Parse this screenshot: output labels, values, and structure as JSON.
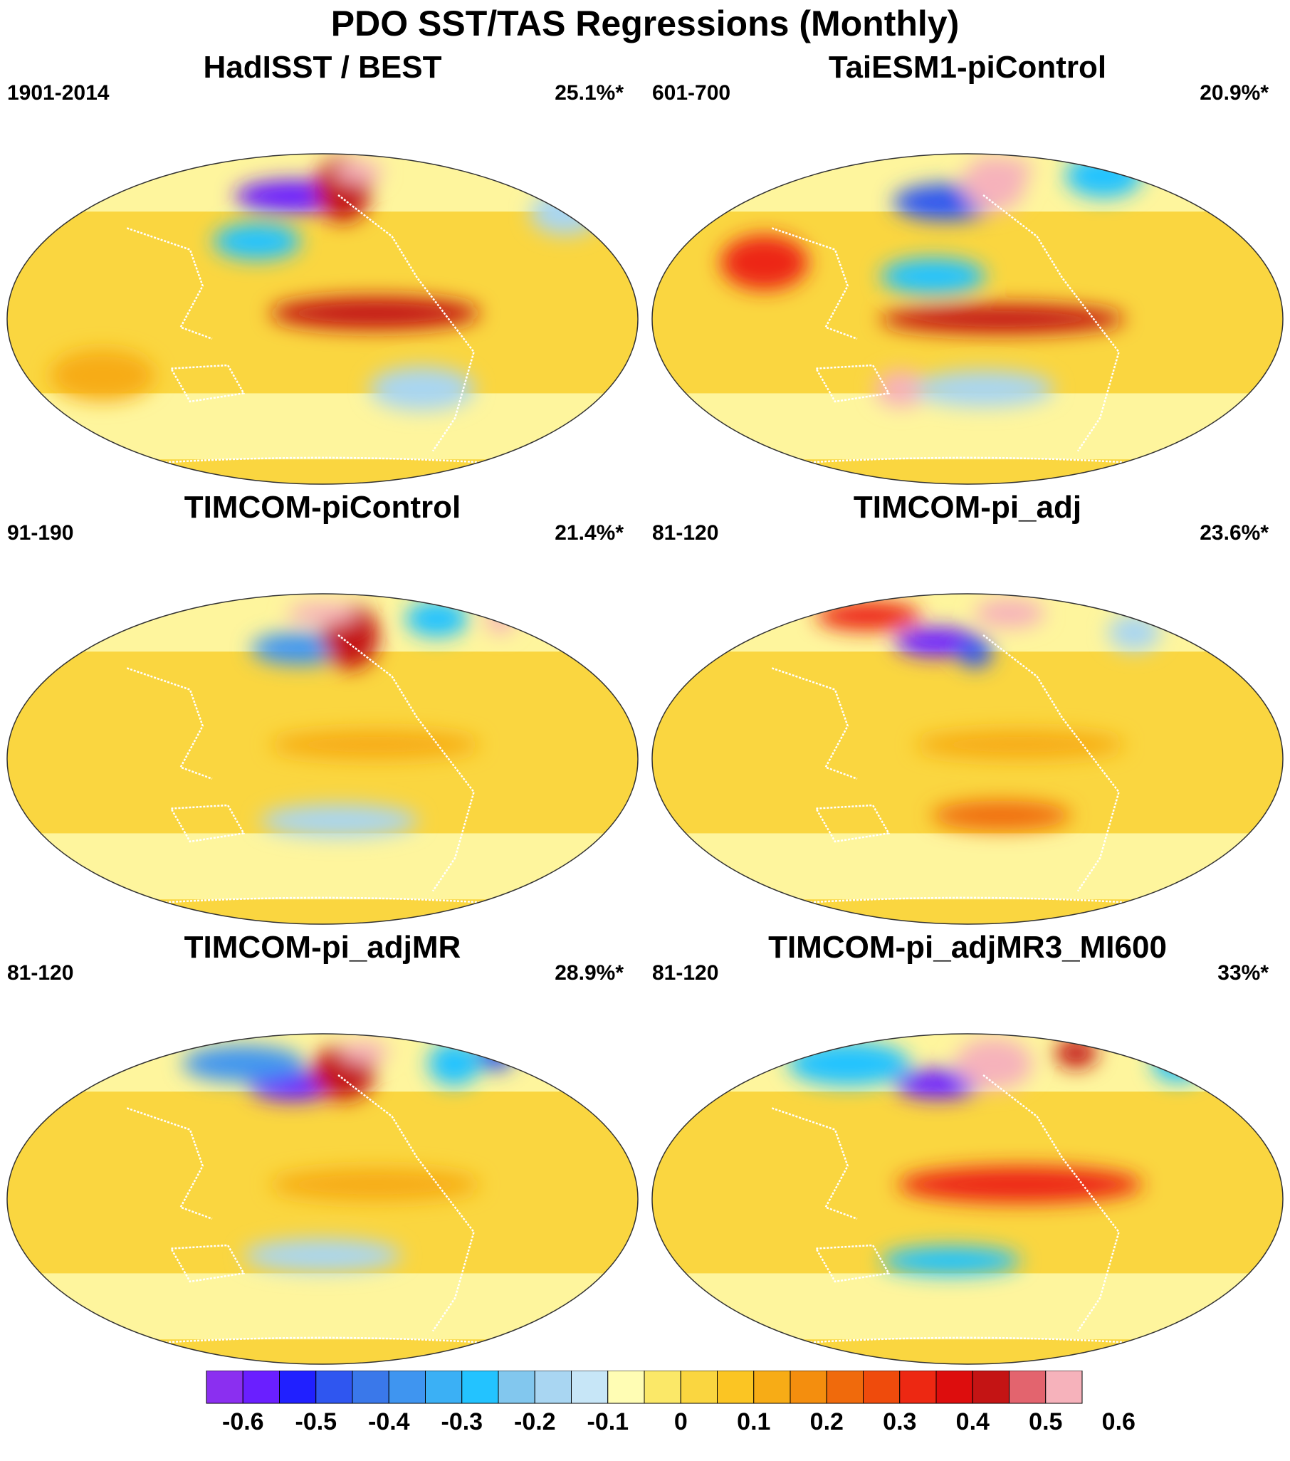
{
  "title": "PDO SST/TAS Regressions (Monthly)",
  "panels": [
    {
      "title": "HadISST / BEST",
      "period": "1901-2014",
      "variance": "25.1%*",
      "blobs": [
        {
          "lon": 160,
          "lat": 48,
          "rx": 34,
          "ry": 9,
          "v": -0.6
        },
        {
          "lon": 195,
          "lat": 52,
          "rx": 16,
          "ry": 18,
          "v": 0.4
        },
        {
          "lon": 210,
          "lat": 63,
          "rx": 14,
          "ry": 6,
          "v": 0.7
        },
        {
          "lon": 210,
          "lat": 2,
          "rx": 60,
          "ry": 9,
          "v": 0.4
        },
        {
          "lon": 140,
          "lat": 28,
          "rx": 25,
          "ry": 10,
          "v": -0.3
        },
        {
          "lon": 240,
          "lat": -25,
          "rx": 30,
          "ry": 12,
          "v": -0.2
        },
        {
          "lon": 50,
          "lat": -20,
          "rx": 30,
          "ry": 14,
          "v": 0.1
        },
        {
          "lon": 340,
          "lat": 40,
          "rx": 20,
          "ry": 12,
          "v": -0.2
        }
      ]
    },
    {
      "title": "TaiESM1-piControl",
      "period": "601-700",
      "variance": "20.9%*",
      "blobs": [
        {
          "lon": 165,
          "lat": 45,
          "rx": 30,
          "ry": 10,
          "v": -0.5
        },
        {
          "lon": 200,
          "lat": 55,
          "rx": 18,
          "ry": 15,
          "v": 0.5
        },
        {
          "lon": 215,
          "lat": 65,
          "rx": 14,
          "ry": 6,
          "v": 0.7
        },
        {
          "lon": 200,
          "lat": 0,
          "rx": 70,
          "ry": 8,
          "v": 0.4
        },
        {
          "lon": 140,
          "lat": -25,
          "rx": 15,
          "ry": 10,
          "v": 0.5
        },
        {
          "lon": 160,
          "lat": 15,
          "rx": 30,
          "ry": 10,
          "v": -0.3
        },
        {
          "lon": 190,
          "lat": -25,
          "rx": 40,
          "ry": 10,
          "v": -0.2
        },
        {
          "lon": 290,
          "lat": 60,
          "rx": 22,
          "ry": 12,
          "v": -0.3
        },
        {
          "lon": 60,
          "lat": 20,
          "rx": 25,
          "ry": 15,
          "v": 0.3
        }
      ]
    },
    {
      "title": "TIMCOM-piControl",
      "period": "91-190",
      "variance": "21.4%*",
      "blobs": [
        {
          "lon": 165,
          "lat": 42,
          "rx": 28,
          "ry": 9,
          "v": -0.4
        },
        {
          "lon": 200,
          "lat": 48,
          "rx": 16,
          "ry": 18,
          "v": 0.4
        },
        {
          "lon": 180,
          "lat": 62,
          "rx": 20,
          "ry": 6,
          "v": 0.5
        },
        {
          "lon": 210,
          "lat": 5,
          "rx": 60,
          "ry": 8,
          "v": 0.1
        },
        {
          "lon": 270,
          "lat": 58,
          "rx": 18,
          "ry": 10,
          "v": -0.3
        },
        {
          "lon": 320,
          "lat": 58,
          "rx": 8,
          "ry": 8,
          "v": 0.5
        },
        {
          "lon": 190,
          "lat": -22,
          "rx": 45,
          "ry": 9,
          "v": -0.2
        }
      ]
    },
    {
      "title": "TIMCOM-pi_adj",
      "period": "81-120",
      "variance": "23.6%*",
      "blobs": [
        {
          "lon": 160,
          "lat": 45,
          "rx": 25,
          "ry": 8,
          "v": -0.6
        },
        {
          "lon": 185,
          "lat": 40,
          "rx": 10,
          "ry": 8,
          "v": -0.5
        },
        {
          "lon": 215,
          "lat": 62,
          "rx": 20,
          "ry": 8,
          "v": 0.6
        },
        {
          "lon": 100,
          "lat": 60,
          "rx": 30,
          "ry": 8,
          "v": 0.3
        },
        {
          "lon": 210,
          "lat": 5,
          "rx": 60,
          "ry": 8,
          "v": 0.1
        },
        {
          "lon": 200,
          "lat": -20,
          "rx": 40,
          "ry": 8,
          "v": 0.2
        },
        {
          "lon": 300,
          "lat": 50,
          "rx": 15,
          "ry": 10,
          "v": -0.2
        }
      ]
    },
    {
      "title": "TIMCOM-pi_adjMR",
      "period": "81-120",
      "variance": "28.9%*",
      "blobs": [
        {
          "lon": 160,
          "lat": 43,
          "rx": 25,
          "ry": 8,
          "v": -0.6
        },
        {
          "lon": 120,
          "lat": 55,
          "rx": 35,
          "ry": 10,
          "v": -0.4
        },
        {
          "lon": 195,
          "lat": 50,
          "rx": 18,
          "ry": 15,
          "v": 0.4
        },
        {
          "lon": 215,
          "lat": 63,
          "rx": 14,
          "ry": 6,
          "v": 0.7
        },
        {
          "lon": 280,
          "lat": 55,
          "rx": 15,
          "ry": 12,
          "v": -0.3
        },
        {
          "lon": 320,
          "lat": 60,
          "rx": 10,
          "ry": 8,
          "v": -0.5
        },
        {
          "lon": 210,
          "lat": 5,
          "rx": 60,
          "ry": 9,
          "v": 0.1
        },
        {
          "lon": 180,
          "lat": -20,
          "rx": 45,
          "ry": 9,
          "v": -0.2
        }
      ]
    },
    {
      "title": "TIMCOM-pi_adjMR3_MI600",
      "period": "81-120",
      "variance": "33%*",
      "blobs": [
        {
          "lon": 160,
          "lat": 44,
          "rx": 25,
          "ry": 8,
          "v": -0.6
        },
        {
          "lon": 200,
          "lat": 55,
          "rx": 22,
          "ry": 14,
          "v": 0.5
        },
        {
          "lon": 210,
          "lat": 62,
          "rx": 12,
          "ry": 5,
          "v": 0.7
        },
        {
          "lon": 210,
          "lat": 5,
          "rx": 70,
          "ry": 10,
          "v": 0.3
        },
        {
          "lon": 170,
          "lat": -22,
          "rx": 40,
          "ry": 8,
          "v": -0.3
        },
        {
          "lon": 90,
          "lat": 55,
          "rx": 35,
          "ry": 12,
          "v": -0.3
        },
        {
          "lon": 340,
          "lat": 55,
          "rx": 15,
          "ry": 10,
          "v": -0.3
        },
        {
          "lon": 270,
          "lat": 62,
          "rx": 12,
          "ry": 8,
          "v": 0.4
        }
      ]
    }
  ],
  "colorbar": {
    "colors": [
      "#8b2ff0",
      "#6a1fff",
      "#2020ff",
      "#2f56f0",
      "#3a78ea",
      "#3f95f0",
      "#3bb0f5",
      "#23c3ff",
      "#82c7ee",
      "#a9d6f2",
      "#c7e6f7",
      "#fffdb4",
      "#fbe868",
      "#fad640",
      "#fbc523",
      "#f7ac16",
      "#f48e0e",
      "#f06a0c",
      "#ef4b0c",
      "#ed2812",
      "#dd0d0d",
      "#c41414",
      "#e3646e",
      "#f6b2bb"
    ],
    "labels": [
      "-0.6",
      "-0.5",
      "-0.4",
      "-0.3",
      "-0.2",
      "-0.1",
      "0",
      "0.1",
      "0.2",
      "0.3",
      "0.4",
      "0.5",
      "0.6"
    ],
    "label_levels": [
      -0.6,
      -0.5,
      -0.4,
      -0.3,
      -0.2,
      -0.1,
      0,
      0.1,
      0.2,
      0.3,
      0.4,
      0.5,
      0.6
    ],
    "level_min": -0.65,
    "level_max": 0.7,
    "level_step": 0.05
  }
}
